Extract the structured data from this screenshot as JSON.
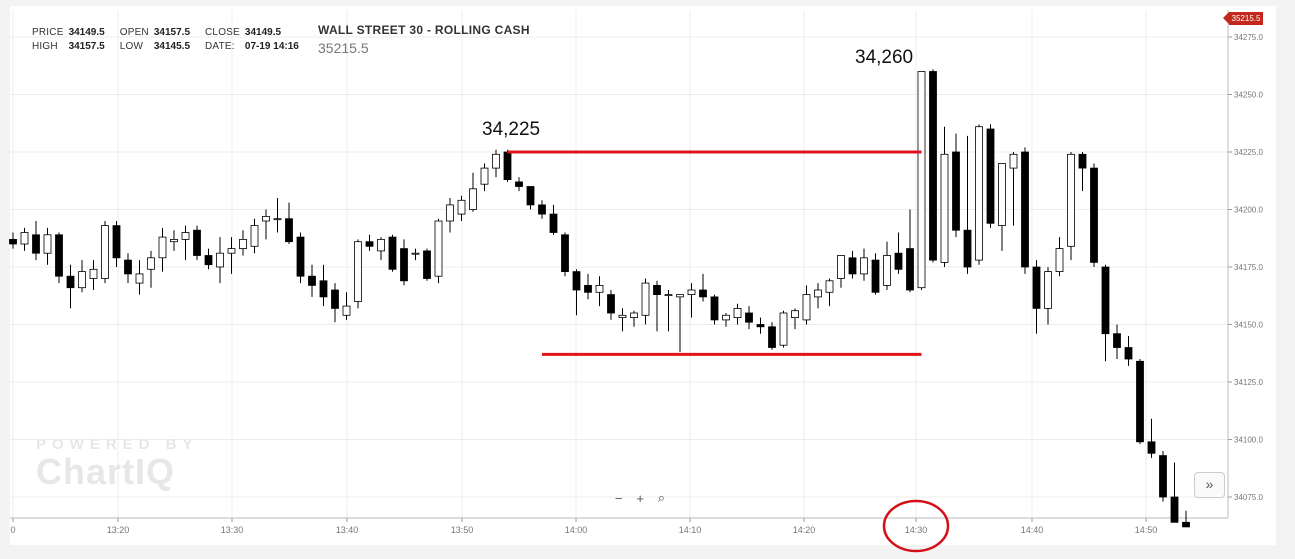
{
  "hud": {
    "price_label": "PRICE",
    "price": "34149.5",
    "open_label": "OPEN",
    "open": "34157.5",
    "close_label": "CLOSE",
    "close": "34149.5",
    "high_label": "HIGH",
    "high": "34157.5",
    "low_label": "LOW",
    "low": "34145.5",
    "date_label": "DATE:",
    "date": "07-19 14:16"
  },
  "symbol": {
    "title": "WALL STREET 30 - ROLLING CASH",
    "last_price": "35215.5"
  },
  "price_flag": "35215.5",
  "watermark": {
    "top": "POWERED BY",
    "bottom": "ChartIQ"
  },
  "zoom": {
    "minus": "−",
    "plus": "+",
    "search": "⌕"
  },
  "nav_button": "»",
  "annotations": {
    "high_a": "34,225",
    "high_b": "34,260"
  },
  "colors": {
    "up_candle": "#ffffff",
    "down_candle": "#000000",
    "line_color": "#e0141c",
    "circle": "#d31018",
    "flag": "#c4281c"
  },
  "chart_data": {
    "type": "candlestick",
    "title": "WALL STREET 30 - ROLLING CASH",
    "ylim": [
      34062,
      34285
    ],
    "y_ticks": [
      "34275.0",
      "34250.0",
      "34225.0",
      "34200.0",
      "34175.0",
      "34150.0",
      "34125.0",
      "34100.0",
      "34075.0"
    ],
    "x_ticks": [
      "0",
      "13:20",
      "13:30",
      "13:40",
      "13:50",
      "14:00",
      "14:10",
      "14:20",
      "14:30",
      "14:40",
      "14:50"
    ],
    "candles": [
      {
        "o": 34187,
        "h": 34190,
        "l": 34183,
        "c": 34185
      },
      {
        "o": 34185,
        "h": 34192,
        "l": 34182,
        "c": 34190
      },
      {
        "o": 34189,
        "h": 34195,
        "l": 34178,
        "c": 34181
      },
      {
        "o": 34181,
        "h": 34192,
        "l": 34176,
        "c": 34189
      },
      {
        "o": 34189,
        "h": 34190,
        "l": 34168,
        "c": 34171
      },
      {
        "o": 34171,
        "h": 34176,
        "l": 34157,
        "c": 34166
      },
      {
        "o": 34166,
        "h": 34178,
        "l": 34164,
        "c": 34173
      },
      {
        "o": 34170,
        "h": 34178,
        "l": 34165,
        "c": 34174
      },
      {
        "o": 34170,
        "h": 34195,
        "l": 34168,
        "c": 34193
      },
      {
        "o": 34193,
        "h": 34195,
        "l": 34175,
        "c": 34179
      },
      {
        "o": 34178,
        "h": 34181,
        "l": 34168,
        "c": 34172
      },
      {
        "o": 34168,
        "h": 34178,
        "l": 34163,
        "c": 34172
      },
      {
        "o": 34174,
        "h": 34182,
        "l": 34166,
        "c": 34179
      },
      {
        "o": 34179,
        "h": 34192,
        "l": 34173,
        "c": 34188
      },
      {
        "o": 34186,
        "h": 34191,
        "l": 34182,
        "c": 34187
      },
      {
        "o": 34187,
        "h": 34193,
        "l": 34178,
        "c": 34190
      },
      {
        "o": 34191,
        "h": 34193,
        "l": 34178,
        "c": 34180
      },
      {
        "o": 34180,
        "h": 34183,
        "l": 34174,
        "c": 34176
      },
      {
        "o": 34175,
        "h": 34188,
        "l": 34168,
        "c": 34181
      },
      {
        "o": 34181,
        "h": 34188,
        "l": 34172,
        "c": 34183
      },
      {
        "o": 34183,
        "h": 34191,
        "l": 34180,
        "c": 34187
      },
      {
        "o": 34184,
        "h": 34196,
        "l": 34181,
        "c": 34193
      },
      {
        "o": 34195,
        "h": 34200,
        "l": 34187,
        "c": 34197
      },
      {
        "o": 34196,
        "h": 34205,
        "l": 34190,
        "c": 34196
      },
      {
        "o": 34196,
        "h": 34203,
        "l": 34185,
        "c": 34186
      },
      {
        "o": 34188,
        "h": 34190,
        "l": 34168,
        "c": 34171
      },
      {
        "o": 34171,
        "h": 34176,
        "l": 34162,
        "c": 34167
      },
      {
        "o": 34169,
        "h": 34176,
        "l": 34158,
        "c": 34162
      },
      {
        "o": 34165,
        "h": 34168,
        "l": 34151,
        "c": 34157
      },
      {
        "o": 34154,
        "h": 34164,
        "l": 34152,
        "c": 34158
      },
      {
        "o": 34160,
        "h": 34187,
        "l": 34157,
        "c": 34186
      },
      {
        "o": 34186,
        "h": 34189,
        "l": 34182,
        "c": 34184
      },
      {
        "o": 34182,
        "h": 34188,
        "l": 34178,
        "c": 34187
      },
      {
        "o": 34188,
        "h": 34189,
        "l": 34173,
        "c": 34174
      },
      {
        "o": 34183,
        "h": 34187,
        "l": 34167,
        "c": 34169
      },
      {
        "o": 34181,
        "h": 34183,
        "l": 34178,
        "c": 34181
      },
      {
        "o": 34182,
        "h": 34183,
        "l": 34169,
        "c": 34170
      },
      {
        "o": 34171,
        "h": 34196,
        "l": 34168,
        "c": 34195
      },
      {
        "o": 34195,
        "h": 34205,
        "l": 34190,
        "c": 34202
      },
      {
        "o": 34198,
        "h": 34206,
        "l": 34195,
        "c": 34204
      },
      {
        "o": 34200,
        "h": 34216,
        "l": 34199,
        "c": 34209
      },
      {
        "o": 34211,
        "h": 34220,
        "l": 34208,
        "c": 34218
      },
      {
        "o": 34218,
        "h": 34226,
        "l": 34214,
        "c": 34224
      },
      {
        "o": 34225,
        "h": 34226,
        "l": 34212,
        "c": 34213
      },
      {
        "o": 34212,
        "h": 34214,
        "l": 34208,
        "c": 34210
      },
      {
        "o": 34210,
        "h": 34210,
        "l": 34200,
        "c": 34202
      },
      {
        "o": 34202,
        "h": 34204,
        "l": 34196,
        "c": 34198
      },
      {
        "o": 34198,
        "h": 34202,
        "l": 34189,
        "c": 34190
      },
      {
        "o": 34189,
        "h": 34190,
        "l": 34171,
        "c": 34173
      },
      {
        "o": 34173,
        "h": 34174,
        "l": 34154,
        "c": 34165
      },
      {
        "o": 34167,
        "h": 34172,
        "l": 34161,
        "c": 34164
      },
      {
        "o": 34164,
        "h": 34171,
        "l": 34158,
        "c": 34167
      },
      {
        "o": 34163,
        "h": 34165,
        "l": 34152,
        "c": 34155
      },
      {
        "o": 34153,
        "h": 34157,
        "l": 34147,
        "c": 34154
      },
      {
        "o": 34153,
        "h": 34156,
        "l": 34149,
        "c": 34155
      },
      {
        "o": 34154,
        "h": 34170,
        "l": 34150,
        "c": 34168
      },
      {
        "o": 34167,
        "h": 34169,
        "l": 34147,
        "c": 34163
      },
      {
        "o": 34163,
        "h": 34165,
        "l": 34147,
        "c": 34163
      },
      {
        "o": 34162,
        "h": 34163,
        "l": 34138,
        "c": 34163
      },
      {
        "o": 34163,
        "h": 34168,
        "l": 34153,
        "c": 34165
      },
      {
        "o": 34165,
        "h": 34172,
        "l": 34160,
        "c": 34162
      },
      {
        "o": 34162,
        "h": 34163,
        "l": 34150,
        "c": 34152
      },
      {
        "o": 34152,
        "h": 34155,
        "l": 34149,
        "c": 34154
      },
      {
        "o": 34153,
        "h": 34159,
        "l": 34150,
        "c": 34157
      },
      {
        "o": 34155,
        "h": 34158,
        "l": 34148,
        "c": 34151
      },
      {
        "o": 34150,
        "h": 34153,
        "l": 34146,
        "c": 34149
      },
      {
        "o": 34149,
        "h": 34151,
        "l": 34139,
        "c": 34140
      },
      {
        "o": 34141,
        "h": 34156,
        "l": 34140,
        "c": 34155
      },
      {
        "o": 34153,
        "h": 34157,
        "l": 34148,
        "c": 34156
      },
      {
        "o": 34152,
        "h": 34167,
        "l": 34150,
        "c": 34163
      },
      {
        "o": 34162,
        "h": 34168,
        "l": 34157,
        "c": 34165
      },
      {
        "o": 34164,
        "h": 34170,
        "l": 34158,
        "c": 34169
      },
      {
        "o": 34170,
        "h": 34180,
        "l": 34166,
        "c": 34180
      },
      {
        "o": 34179,
        "h": 34182,
        "l": 34170,
        "c": 34172
      },
      {
        "o": 34172,
        "h": 34183,
        "l": 34169,
        "c": 34179
      },
      {
        "o": 34178,
        "h": 34181,
        "l": 34163,
        "c": 34164
      },
      {
        "o": 34167,
        "h": 34186,
        "l": 34165,
        "c": 34180
      },
      {
        "o": 34181,
        "h": 34190,
        "l": 34172,
        "c": 34174
      },
      {
        "o": 34183,
        "h": 34200,
        "l": 34164,
        "c": 34165
      },
      {
        "o": 34166,
        "h": 34260,
        "l": 34165,
        "c": 34260
      },
      {
        "o": 34260,
        "h": 34261,
        "l": 34177,
        "c": 34178
      },
      {
        "o": 34177,
        "h": 34236,
        "l": 34175,
        "c": 34224
      },
      {
        "o": 34225,
        "h": 34233,
        "l": 34188,
        "c": 34191
      },
      {
        "o": 34191,
        "h": 34232,
        "l": 34172,
        "c": 34175
      },
      {
        "o": 34178,
        "h": 34237,
        "l": 34176,
        "c": 34236
      },
      {
        "o": 34235,
        "h": 34237,
        "l": 34192,
        "c": 34194
      },
      {
        "o": 34193,
        "h": 34220,
        "l": 34182,
        "c": 34220
      },
      {
        "o": 34218,
        "h": 34225,
        "l": 34193,
        "c": 34224
      },
      {
        "o": 34225,
        "h": 34227,
        "l": 34172,
        "c": 34175
      },
      {
        "o": 34175,
        "h": 34178,
        "l": 34146,
        "c": 34157
      },
      {
        "o": 34157,
        "h": 34175,
        "l": 34150,
        "c": 34173
      },
      {
        "o": 34173,
        "h": 34188,
        "l": 34171,
        "c": 34183
      },
      {
        "o": 34184,
        "h": 34225,
        "l": 34178,
        "c": 34224
      },
      {
        "o": 34224,
        "h": 34225,
        "l": 34208,
        "c": 34218
      },
      {
        "o": 34218,
        "h": 34220,
        "l": 34175,
        "c": 34177
      },
      {
        "o": 34175,
        "h": 34176,
        "l": 34134,
        "c": 34146
      },
      {
        "o": 34146,
        "h": 34150,
        "l": 34135,
        "c": 34140
      },
      {
        "o": 34140,
        "h": 34145,
        "l": 34132,
        "c": 34135
      },
      {
        "o": 34134,
        "h": 34135,
        "l": 34098,
        "c": 34099
      },
      {
        "o": 34099,
        "h": 34109,
        "l": 34092,
        "c": 34094
      },
      {
        "o": 34093,
        "h": 34095,
        "l": 34073,
        "c": 34075
      },
      {
        "o": 34075,
        "h": 34090,
        "l": 34064,
        "c": 34064
      },
      {
        "o": 34064,
        "h": 34069,
        "l": 34062,
        "c": 34062
      }
    ],
    "lines": [
      {
        "y": 34225,
        "from": 43,
        "to": 79
      },
      {
        "y": 34137,
        "from": 46,
        "to": 79
      }
    ]
  }
}
